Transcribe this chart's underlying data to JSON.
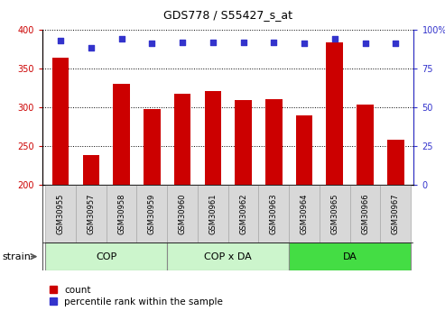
{
  "title": "GDS778 / S55427_s_at",
  "samples": [
    "GSM30955",
    "GSM30957",
    "GSM30958",
    "GSM30959",
    "GSM30960",
    "GSM30961",
    "GSM30962",
    "GSM30963",
    "GSM30964",
    "GSM30965",
    "GSM30966",
    "GSM30967"
  ],
  "counts": [
    364,
    238,
    330,
    298,
    317,
    321,
    309,
    310,
    290,
    383,
    304,
    258
  ],
  "percentiles": [
    93,
    88,
    94,
    91,
    92,
    92,
    92,
    92,
    91,
    94,
    91,
    91
  ],
  "bar_color": "#cc0000",
  "dot_color": "#3333cc",
  "ylim_left": [
    200,
    400
  ],
  "ylim_right": [
    0,
    100
  ],
  "yticks_left": [
    200,
    250,
    300,
    350,
    400
  ],
  "yticks_right": [
    0,
    25,
    50,
    75,
    100
  ],
  "group_info": [
    {
      "label": "COP",
      "start": 0,
      "end": 4,
      "color": "#ccf5cc"
    },
    {
      "label": "COP x DA",
      "start": 4,
      "end": 8,
      "color": "#ccf5cc"
    },
    {
      "label": "DA",
      "start": 8,
      "end": 12,
      "color": "#44dd44"
    }
  ],
  "legend_count_label": "count",
  "legend_pct_label": "percentile rank within the sample",
  "strain_label": "strain",
  "bar_color_left": "#cc0000",
  "bar_color_right": "#3333cc",
  "title_fontsize": 9,
  "axis_fontsize": 7,
  "label_fontsize": 6,
  "group_fontsize": 8
}
